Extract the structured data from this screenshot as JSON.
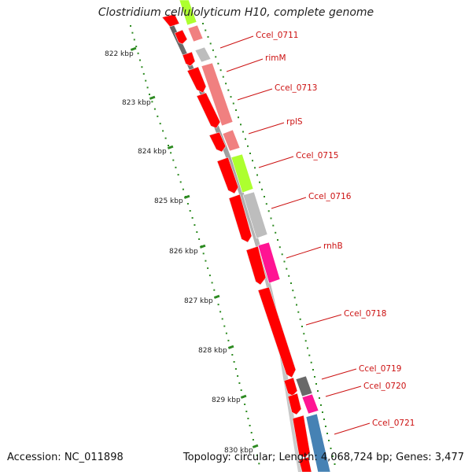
{
  "header": {
    "title": "Clostridium cellulolyticum H10, complete genome"
  },
  "footer": {
    "accession": "Accession: NC_011898",
    "summary": "Topology: circular; Length: 4,068,724 bp; Genes: 3,477"
  },
  "ticks": [
    "822 kbp",
    "823 kbp",
    "824 kbp",
    "825 kbp",
    "826 kbp",
    "827 kbp",
    "828 kbp",
    "829 kbp",
    "830 kbp"
  ],
  "genes": [
    {
      "label": "Ccel_0711",
      "color": "#f08080"
    },
    {
      "label": "rimM",
      "color": "#bdbdbd"
    },
    {
      "label": "Ccel_0713",
      "color": "#f08080"
    },
    {
      "label": "rplS",
      "color": "#f08080"
    },
    {
      "label": "Ccel_0715",
      "color": "#adff2f"
    },
    {
      "label": "Ccel_0716",
      "color": "#bdbdbd"
    },
    {
      "label": "rnhB",
      "color": "#ff1493"
    },
    {
      "label": "Ccel_0718",
      "color": "#ff0000"
    },
    {
      "label": "Ccel_0719",
      "color": "#696969"
    },
    {
      "label": "Ccel_0720",
      "color": "#ff1493"
    },
    {
      "label": "Ccel_0721",
      "color": "#4682b4"
    }
  ],
  "colors": {
    "cds": "#ff0000",
    "backbone": "#7a7a7a",
    "tick": "#2e8b22",
    "label": "#cc1111",
    "top_green": "#adff2f"
  }
}
